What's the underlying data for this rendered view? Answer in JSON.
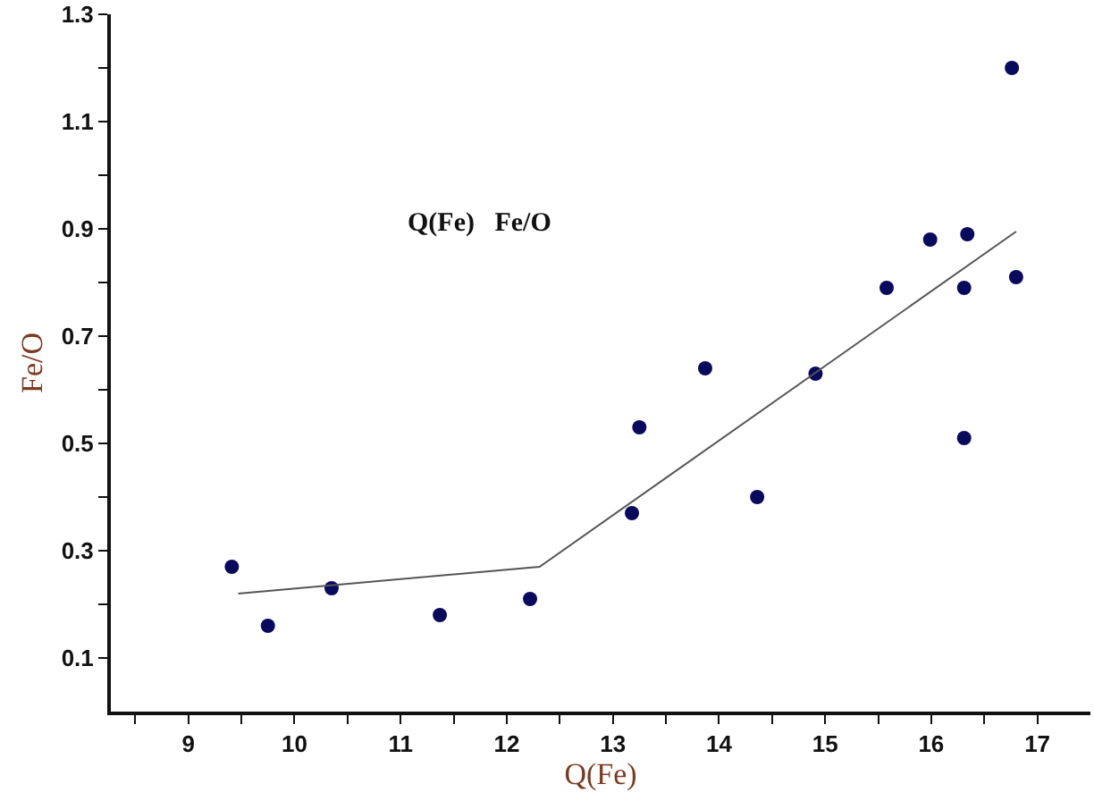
{
  "chart_data": {
    "type": "scatter",
    "xlabel": "Q(Fe)",
    "ylabel": "Fe/O",
    "annotations": [
      "Q(Fe)   Fe/O"
    ],
    "x": [
      9.41,
      9.75,
      10.35,
      11.37,
      12.22,
      13.18,
      13.25,
      13.87,
      14.36,
      14.91,
      15.58,
      15.99,
      16.34,
      16.31,
      16.31,
      16.76,
      16.8
    ],
    "series": [
      {
        "color": "#0a0a5c",
        "marker": "circle",
        "values": [
          0.27,
          0.16,
          0.23,
          0.18,
          0.21,
          0.37,
          0.53,
          0.64,
          0.4,
          0.63,
          0.79,
          0.88,
          0.89,
          0.79,
          0.51,
          1.2,
          0.81
        ]
      },
      {
        "type": "line",
        "color": "#555555",
        "marker": "none",
        "line_style": "solid",
        "x": [
          9.47,
          12.31,
          16.8
        ],
        "values": [
          0.22,
          0.27,
          0.895
        ]
      }
    ],
    "xlim": [
      8.27,
      17.5
    ],
    "xticks": [
      {
        "value": 8.5,
        "label": null
      },
      9,
      {
        "value": 9.5,
        "label": null
      },
      10,
      {
        "value": 10.5,
        "label": null
      },
      11,
      {
        "value": 11.5,
        "label": null
      },
      12,
      {
        "value": 12.5,
        "label": null
      },
      13,
      {
        "value": 13.5,
        "label": null
      },
      14,
      {
        "value": 14.5,
        "label": null
      },
      15,
      {
        "value": 15.5,
        "label": null
      },
      16,
      {
        "value": 16.5,
        "label": null
      },
      17
    ],
    "ylim": [
      0,
      1.3
    ],
    "yticks": [
      0.1,
      {
        "value": 0.2,
        "label": null
      },
      0.3,
      {
        "value": 0.4,
        "label": null
      },
      0.5,
      {
        "value": 0.6,
        "label": null
      },
      0.7,
      {
        "value": 0.8,
        "label": null
      },
      0.9,
      {
        "value": 1.0,
        "label": null
      },
      1.1,
      {
        "value": 1.2,
        "label": null
      },
      1.3
    ],
    "grid": false
  }
}
